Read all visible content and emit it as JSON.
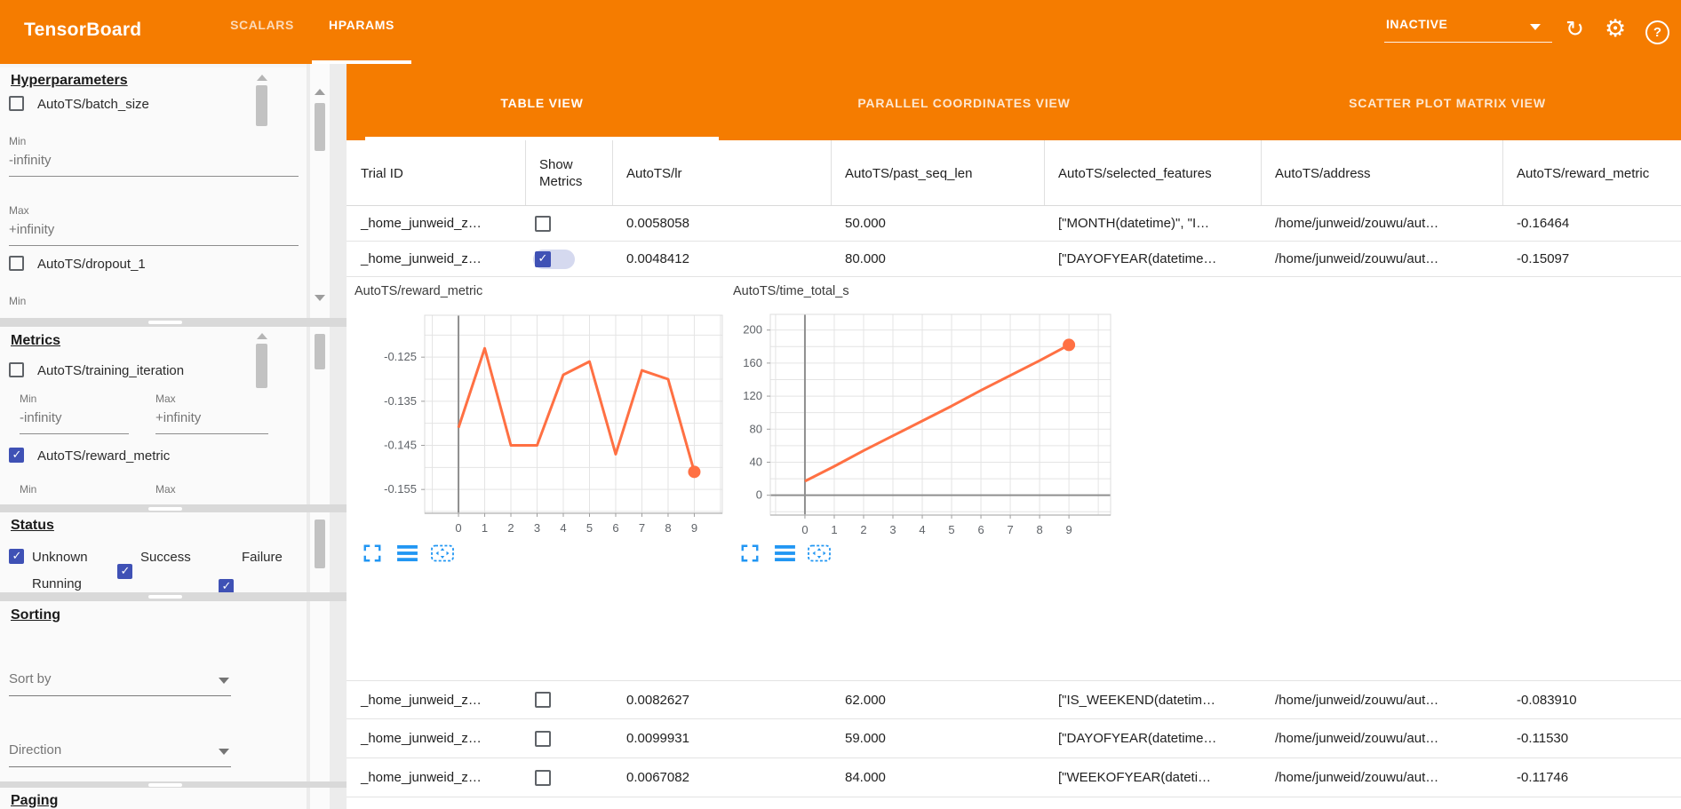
{
  "app_bar": {
    "title": "TensorBoard",
    "tabs": [
      {
        "label": "SCALARS"
      },
      {
        "label": "HPARAMS"
      }
    ],
    "active_tab": "HPARAMS",
    "status_dropdown": {
      "value": "INACTIVE"
    },
    "bar_color": "#f57c00"
  },
  "sidebar": {
    "hyperparameters": {
      "title": "Hyperparameters",
      "item1": {
        "label": "AutoTS/batch_size",
        "checked": false
      },
      "min_label": "Min",
      "min_value": "-infinity",
      "max_label": "Max",
      "max_value": "+infinity",
      "item2": {
        "label": "AutoTS/dropout_1",
        "checked": false
      },
      "min2_label": "Min"
    },
    "metrics": {
      "title": "Metrics",
      "item1": {
        "label": "AutoTS/training_iteration",
        "checked": false
      },
      "min_label": "Min",
      "min_value": "-infinity",
      "max_label": "Max",
      "max_value": "+infinity",
      "item2": {
        "label": "AutoTS/reward_metric",
        "checked": true
      },
      "min2_label": "Min",
      "max2_label": "Max"
    },
    "status": {
      "title": "Status",
      "options": [
        {
          "label": "Unknown",
          "checked": true
        },
        {
          "label": "Success",
          "checked": true
        },
        {
          "label": "Failure",
          "checked": true
        },
        {
          "label": "Running",
          "checked": true
        }
      ]
    },
    "sorting": {
      "title": "Sorting",
      "sort_by_placeholder": "Sort by",
      "direction_placeholder": "Direction"
    },
    "paging": {
      "title": "Paging"
    }
  },
  "view_tabs": {
    "tabs": [
      {
        "label": "TABLE VIEW"
      },
      {
        "label": "PARALLEL COORDINATES VIEW"
      },
      {
        "label": "SCATTER PLOT MATRIX VIEW"
      }
    ],
    "active": "TABLE VIEW"
  },
  "table": {
    "columns": [
      "Trial ID",
      "Show Metrics",
      "AutoTS/lr",
      "AutoTS/past_seq_len",
      "AutoTS/selected_features",
      "AutoTS/address",
      "AutoTS/reward_metric"
    ],
    "rows": [
      {
        "trial_id": "_home_junweid_z…",
        "show_metrics": false,
        "lr": "0.0058058",
        "past_seq_len": "50.000",
        "selected_features": "[\"MONTH(datetime)\", \"I…",
        "address": "/home/junweid/zouwu/aut…",
        "reward_metric": "-0.16464"
      },
      {
        "trial_id": "_home_junweid_z…",
        "show_metrics": true,
        "lr": "0.0048412",
        "past_seq_len": "80.000",
        "selected_features": "[\"DAYOFYEAR(datetime…",
        "address": "/home/junweid/zouwu/aut…",
        "reward_metric": "-0.15097"
      },
      {
        "trial_id": "_home_junweid_z…",
        "show_metrics": false,
        "lr": "0.0082627",
        "past_seq_len": "62.000",
        "selected_features": "[\"IS_WEEKEND(datetim…",
        "address": "/home/junweid/zouwu/aut…",
        "reward_metric": "-0.083910"
      },
      {
        "trial_id": "_home_junweid_z…",
        "show_metrics": false,
        "lr": "0.0099931",
        "past_seq_len": "59.000",
        "selected_features": "[\"DAYOFYEAR(datetime…",
        "address": "/home/junweid/zouwu/aut…",
        "reward_metric": "-0.11530"
      },
      {
        "trial_id": "_home_junweid_z…",
        "show_metrics": false,
        "lr": "0.0067082",
        "past_seq_len": "84.000",
        "selected_features": "[\"WEEKOFYEAR(dateti…",
        "address": "/home/junweid/zouwu/aut…",
        "reward_metric": "-0.11746"
      }
    ]
  },
  "chart_data": [
    {
      "type": "line",
      "title": "AutoTS/reward_metric",
      "x": [
        0,
        1,
        2,
        3,
        4,
        5,
        6,
        7,
        8,
        9
      ],
      "values": [
        -0.141,
        -0.123,
        -0.145,
        -0.145,
        -0.129,
        -0.126,
        -0.147,
        -0.128,
        -0.13,
        -0.151
      ],
      "xticks": [
        0,
        1,
        2,
        3,
        4,
        5,
        6,
        7,
        8,
        9
      ],
      "yticks": [
        -0.125,
        -0.135,
        -0.145,
        -0.155
      ],
      "xlim": [
        -1.29,
        10.07
      ],
      "ylim": [
        -0.1604,
        -0.1155
      ],
      "xlabel": "",
      "ylabel": "",
      "grid": true,
      "line_color": "#ff7043",
      "end_marker": true
    },
    {
      "type": "line",
      "title": "AutoTS/time_total_s",
      "x": [
        0,
        1,
        2,
        3,
        4,
        5,
        6,
        7,
        8,
        9
      ],
      "values": [
        17,
        35,
        54,
        72,
        90,
        108,
        127,
        145,
        163,
        182
      ],
      "xticks": [
        0,
        1,
        2,
        3,
        4,
        5,
        6,
        7,
        8,
        9
      ],
      "yticks": [
        200,
        160,
        120,
        80,
        40,
        0
      ],
      "xlim": [
        -1.18,
        10.42
      ],
      "ylim": [
        -24,
        219
      ],
      "xlabel": "",
      "ylabel": "",
      "grid": true,
      "line_color": "#ff7043",
      "end_marker": true
    }
  ]
}
